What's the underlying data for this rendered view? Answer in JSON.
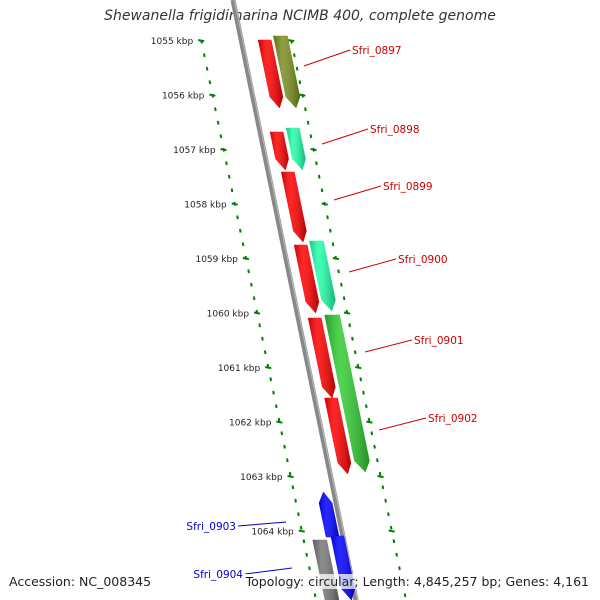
{
  "title": "Shewanella frigidimarina NCIMB 400, complete genome",
  "accession": "Accession: NC_008345",
  "summary": "Topology: circular; Length: 4,845,257 bp; Genes: 4,161",
  "colors": {
    "ruler": "#008000",
    "backbone": "#888888",
    "label_upper": "#cc0000",
    "label_lower": "#0000cc",
    "gene_red": "#ff0000",
    "gene_olive": "#7a8f1f",
    "gene_aqua": "#22ffaa",
    "gene_green": "#33cc33",
    "gene_blue": "#0000ff",
    "gene_gray": "#777777"
  },
  "ruler_labels": [
    "1055 kbp",
    "1056 kbp",
    "1057 kbp",
    "1058 kbp",
    "1059 kbp",
    "1060 kbp",
    "1061 kbp",
    "1062 kbp",
    "1063 kbp",
    "1064 kbp"
  ],
  "gene_labels": [
    "Sfri_0897",
    "Sfri_0898",
    "Sfri_0899",
    "Sfri_0900",
    "Sfri_0901",
    "Sfri_0902",
    "Sfri_0903",
    "Sfri_0904"
  ]
}
